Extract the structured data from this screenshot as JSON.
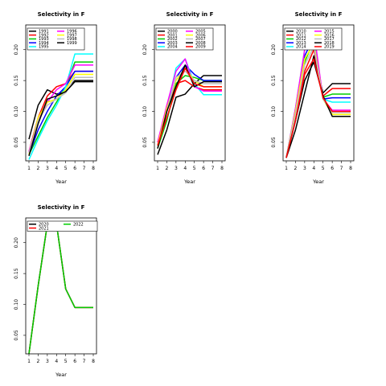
{
  "palette": [
    "#000000",
    "#ff0000",
    "#00cd00",
    "#0000ff",
    "#00ffff",
    "#ff00ff",
    "#ffff00",
    "#bebebe"
  ],
  "chart_data": [
    {
      "type": "line",
      "title": "Selectivity in F",
      "xlabel": "Year",
      "ylabel": "",
      "x": [
        1,
        2,
        3,
        4,
        5,
        6,
        7,
        8
      ],
      "xlim": [
        1,
        8
      ],
      "ylim": [
        0.02,
        0.24
      ],
      "yticks": [
        0.05,
        0.1,
        0.15,
        0.2
      ],
      "ytick_labels": [
        "0.05",
        "0.10",
        "0.15",
        "0.20"
      ],
      "legend": "top-left",
      "legend_columns": 2,
      "series": [
        {
          "name": "1991",
          "color": "#000000",
          "values": [
            0.055,
            0.11,
            0.135,
            0.128,
            0.132,
            0.15,
            0.15,
            0.15
          ]
        },
        {
          "name": "1992",
          "color": "#ff0000",
          "values": [
            0.035,
            0.09,
            0.125,
            0.14,
            0.145,
            0.165,
            0.165,
            0.165
          ]
        },
        {
          "name": "1993",
          "color": "#00cd00",
          "values": [
            0.03,
            0.06,
            0.09,
            0.115,
            0.14,
            0.18,
            0.18,
            0.18
          ]
        },
        {
          "name": "1994",
          "color": "#0000ff",
          "values": [
            0.03,
            0.07,
            0.1,
            0.125,
            0.14,
            0.165,
            0.165,
            0.165
          ]
        },
        {
          "name": "1995",
          "color": "#00ffff",
          "values": [
            0.022,
            0.055,
            0.085,
            0.11,
            0.14,
            0.193,
            0.193,
            0.193
          ]
        },
        {
          "name": "1996",
          "color": "#ff00ff",
          "values": [
            0.035,
            0.085,
            0.115,
            0.135,
            0.145,
            0.175,
            0.175,
            0.175
          ]
        },
        {
          "name": "1997",
          "color": "#ffff00",
          "values": [
            0.03,
            0.09,
            0.115,
            0.12,
            0.135,
            0.16,
            0.16,
            0.16
          ]
        },
        {
          "name": "1998",
          "color": "#bebebe",
          "values": [
            0.033,
            0.085,
            0.11,
            0.12,
            0.13,
            0.155,
            0.155,
            0.155
          ]
        },
        {
          "name": "1999",
          "color": "#000000",
          "values": [
            0.028,
            0.08,
            0.12,
            0.125,
            0.132,
            0.148,
            0.148,
            0.148
          ]
        }
      ]
    },
    {
      "type": "line",
      "title": "Selectivity in F",
      "xlabel": "Year",
      "ylabel": "",
      "x": [
        1,
        2,
        3,
        4,
        5,
        6,
        7,
        8
      ],
      "xlim": [
        1,
        8
      ],
      "ylim": [
        0.02,
        0.24
      ],
      "yticks": [
        0.05,
        0.1,
        0.15,
        0.2
      ],
      "ytick_labels": [
        "0.05",
        "0.10",
        "0.15",
        "0.20"
      ],
      "legend": "top-left",
      "legend_columns": 2,
      "series": [
        {
          "name": "2000",
          "color": "#000000",
          "values": [
            0.03,
            0.07,
            0.123,
            0.128,
            0.145,
            0.158,
            0.158,
            0.158
          ]
        },
        {
          "name": "2001",
          "color": "#ff0000",
          "values": [
            0.05,
            0.1,
            0.145,
            0.15,
            0.14,
            0.135,
            0.135,
            0.135
          ]
        },
        {
          "name": "2002",
          "color": "#00cd00",
          "values": [
            0.04,
            0.085,
            0.145,
            0.158,
            0.155,
            0.15,
            0.15,
            0.15
          ]
        },
        {
          "name": "2003",
          "color": "#0000ff",
          "values": [
            0.045,
            0.1,
            0.155,
            0.175,
            0.16,
            0.15,
            0.15,
            0.15
          ]
        },
        {
          "name": "2004",
          "color": "#00ffff",
          "values": [
            0.045,
            0.105,
            0.17,
            0.185,
            0.145,
            0.127,
            0.127,
            0.127
          ]
        },
        {
          "name": "2005",
          "color": "#ff00ff",
          "values": [
            0.05,
            0.11,
            0.165,
            0.185,
            0.14,
            0.133,
            0.133,
            0.133
          ]
        },
        {
          "name": "2006",
          "color": "#ffff00",
          "values": [
            0.045,
            0.105,
            0.15,
            0.17,
            0.15,
            0.14,
            0.14,
            0.14
          ]
        },
        {
          "name": "2007",
          "color": "#bebebe",
          "values": [
            0.04,
            0.1,
            0.155,
            0.165,
            0.15,
            0.145,
            0.145,
            0.145
          ]
        },
        {
          "name": "2008",
          "color": "#000000",
          "values": [
            0.04,
            0.1,
            0.14,
            0.175,
            0.14,
            0.148,
            0.148,
            0.148
          ]
        },
        {
          "name": "2009",
          "color": "#ff0000",
          "values": [
            0.045,
            0.09,
            0.135,
            0.17,
            0.145,
            0.14,
            0.14,
            0.14
          ]
        }
      ]
    },
    {
      "type": "line",
      "title": "Selectivity in F",
      "xlabel": "Year",
      "ylabel": "",
      "x": [
        1,
        2,
        3,
        4,
        5,
        6,
        7,
        8
      ],
      "xlim": [
        1,
        8
      ],
      "ylim": [
        0.02,
        0.24
      ],
      "yticks": [
        0.05,
        0.1,
        0.15,
        0.2
      ],
      "ytick_labels": [
        "0.05",
        "0.10",
        "0.15",
        "0.20"
      ],
      "legend": "top-left",
      "legend_columns": 2,
      "series": [
        {
          "name": "2010",
          "color": "#000000",
          "values": [
            0.025,
            0.07,
            0.13,
            0.19,
            0.13,
            0.145,
            0.145,
            0.145
          ]
        },
        {
          "name": "2011",
          "color": "#ff0000",
          "values": [
            0.025,
            0.09,
            0.165,
            0.2,
            0.125,
            0.137,
            0.137,
            0.137
          ]
        },
        {
          "name": "2012",
          "color": "#00cd00",
          "values": [
            0.025,
            0.1,
            0.18,
            0.215,
            0.123,
            0.128,
            0.128,
            0.128
          ]
        },
        {
          "name": "2013",
          "color": "#0000ff",
          "values": [
            0.025,
            0.1,
            0.19,
            0.22,
            0.12,
            0.122,
            0.122,
            0.122
          ]
        },
        {
          "name": "2014",
          "color": "#00ffff",
          "values": [
            0.025,
            0.105,
            0.2,
            0.225,
            0.12,
            0.115,
            0.115,
            0.115
          ]
        },
        {
          "name": "2015",
          "color": "#ff00ff",
          "values": [
            0.025,
            0.105,
            0.2,
            0.23,
            0.12,
            0.102,
            0.102,
            0.102
          ]
        },
        {
          "name": "2016",
          "color": "#ffff00",
          "values": [
            0.025,
            0.1,
            0.185,
            0.21,
            0.12,
            0.095,
            0.095,
            0.095
          ]
        },
        {
          "name": "2017",
          "color": "#bebebe",
          "values": [
            0.025,
            0.095,
            0.175,
            0.205,
            0.12,
            0.098,
            0.098,
            0.098
          ]
        },
        {
          "name": "2018",
          "color": "#000000",
          "values": [
            0.025,
            0.085,
            0.15,
            0.18,
            0.125,
            0.092,
            0.092,
            0.092
          ]
        },
        {
          "name": "2019",
          "color": "#ff0000",
          "values": [
            0.025,
            0.085,
            0.16,
            0.185,
            0.122,
            0.1,
            0.1,
            0.1
          ]
        }
      ]
    },
    {
      "type": "line",
      "title": "Selectivity in F",
      "xlabel": "Year",
      "ylabel": "",
      "x": [
        1,
        2,
        3,
        4,
        5,
        6,
        7,
        8
      ],
      "xlim": [
        1,
        8
      ],
      "ylim": [
        0.02,
        0.24
      ],
      "yticks": [
        0.05,
        0.1,
        0.15,
        0.2
      ],
      "ytick_labels": [
        "0.05",
        "0.10",
        "0.15",
        "0.20"
      ],
      "legend": "top-left",
      "legend_columns": 2,
      "series": [
        {
          "name": "2020",
          "color": "#000000",
          "values": [
            0.02,
            0.13,
            0.23,
            0.23,
            0.125,
            0.095,
            0.095,
            0.095
          ]
        },
        {
          "name": "2021",
          "color": "#ff0000",
          "values": [
            0.02,
            0.13,
            0.23,
            0.23,
            0.125,
            0.095,
            0.095,
            0.095
          ]
        },
        {
          "name": "2022",
          "color": "#00cd00",
          "values": [
            0.02,
            0.13,
            0.23,
            0.23,
            0.125,
            0.095,
            0.095,
            0.095
          ]
        }
      ]
    }
  ]
}
